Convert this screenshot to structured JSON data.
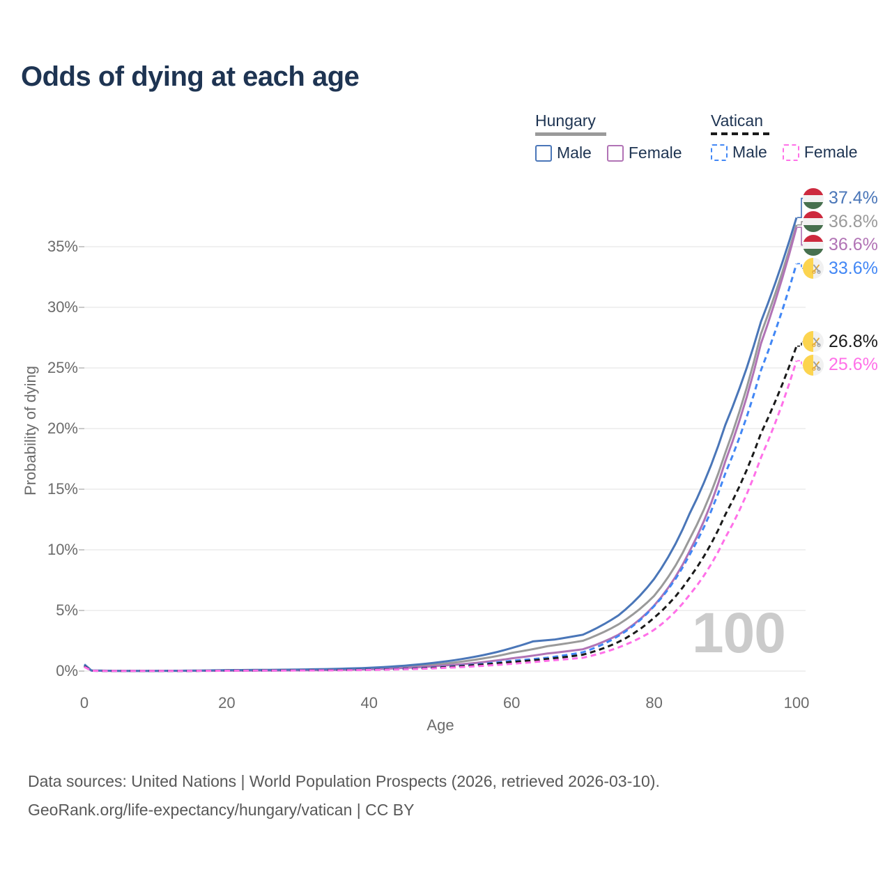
{
  "title": "Odds of dying at each age",
  "legend": {
    "groups": [
      {
        "id": "hungary",
        "label": "Hungary",
        "line_series": "hungary_total",
        "items": [
          {
            "label": "Male",
            "series": "hungary_male"
          },
          {
            "label": "Female",
            "series": "hungary_female"
          }
        ]
      },
      {
        "id": "vatican",
        "label": "Vatican",
        "line_series": "vatican_total",
        "items": [
          {
            "label": "Male",
            "series": "vatican_male"
          },
          {
            "label": "Female",
            "series": "vatican_female"
          }
        ]
      }
    ]
  },
  "axes": {
    "x_label": "Age",
    "y_label": "Probability of dying"
  },
  "hover_age_indicator": "100",
  "footer": {
    "line1": "Data sources: United Nations | World Population Prospects (2026, retrieved 2026-03-10).",
    "line2": "GeoRank.org/life-expectancy/hungary/vatican | CC BY"
  },
  "colors": {
    "title_text": "#1e3452",
    "tick_text": "#6b6b6b",
    "gridline": "#ebebeb",
    "watermark": "#cbcbcb",
    "footer_text": "#585858",
    "flag_hungary": [
      "#cd2a3e",
      "#f2f2f2",
      "#47704e"
    ],
    "flag_vatican": [
      "#fcd44f",
      "#f1f1f1",
      "#e2aa3b",
      "#9a9fa4"
    ]
  },
  "chart_data": {
    "type": "line",
    "title": "Odds of dying at each age",
    "xlabel": "Age",
    "ylabel": "Probability of dying",
    "xlim": [
      0,
      100
    ],
    "ylim": [
      0,
      39
    ],
    "x_ticks": [
      0,
      20,
      40,
      60,
      80,
      100
    ],
    "y_ticks": [
      0,
      5,
      10,
      15,
      20,
      25,
      30,
      35
    ],
    "y_tick_suffix": "%",
    "grid": "horizontal",
    "legend_position": "top-right",
    "watermark_age": "100",
    "units": "percent probability of dying at each age",
    "series": [
      {
        "id": "hungary_male",
        "name": "Hungary Male",
        "country": "Hungary",
        "sex": "Male",
        "color": "#4a76b8",
        "dash": "solid",
        "flag": "hungary",
        "end_label": "37.4%",
        "end_value": 37.4,
        "points": [
          [
            0,
            0.55
          ],
          [
            1,
            0.05
          ],
          [
            5,
            0.02
          ],
          [
            10,
            0.02
          ],
          [
            15,
            0.04
          ],
          [
            20,
            0.08
          ],
          [
            25,
            0.1
          ],
          [
            30,
            0.13
          ],
          [
            35,
            0.18
          ],
          [
            40,
            0.27
          ],
          [
            45,
            0.45
          ],
          [
            50,
            0.75
          ],
          [
            55,
            1.2
          ],
          [
            60,
            1.9
          ],
          [
            63,
            2.45
          ],
          [
            66,
            2.6
          ],
          [
            70,
            3.0
          ],
          [
            75,
            4.6
          ],
          [
            80,
            7.6
          ],
          [
            85,
            13.0
          ],
          [
            90,
            20.3
          ],
          [
            93,
            25.0
          ],
          [
            95,
            28.8
          ],
          [
            100,
            37.4
          ]
        ]
      },
      {
        "id": "hungary_total",
        "name": "Hungary",
        "country": "Hungary",
        "sex": "Both",
        "color": "#9a9a9a",
        "dash": "solid",
        "flag": "hungary",
        "end_label": "36.8%",
        "end_value": 36.8,
        "points": [
          [
            0,
            0.5
          ],
          [
            1,
            0.04
          ],
          [
            5,
            0.02
          ],
          [
            10,
            0.02
          ],
          [
            15,
            0.03
          ],
          [
            20,
            0.06
          ],
          [
            25,
            0.08
          ],
          [
            30,
            0.1
          ],
          [
            35,
            0.14
          ],
          [
            40,
            0.21
          ],
          [
            45,
            0.35
          ],
          [
            50,
            0.58
          ],
          [
            55,
            0.95
          ],
          [
            60,
            1.5
          ],
          [
            65,
            2.05
          ],
          [
            70,
            2.5
          ],
          [
            75,
            3.85
          ],
          [
            80,
            6.2
          ],
          [
            85,
            10.9
          ],
          [
            90,
            18.0
          ],
          [
            95,
            27.8
          ],
          [
            100,
            36.8
          ]
        ]
      },
      {
        "id": "hungary_female",
        "name": "Hungary Female",
        "country": "Hungary",
        "sex": "Female",
        "color": "#b173b5",
        "dash": "solid",
        "flag": "hungary",
        "end_label": "36.6%",
        "end_value": 36.6,
        "points": [
          [
            0,
            0.45
          ],
          [
            1,
            0.04
          ],
          [
            5,
            0.01
          ],
          [
            10,
            0.01
          ],
          [
            15,
            0.02
          ],
          [
            20,
            0.03
          ],
          [
            25,
            0.04
          ],
          [
            30,
            0.06
          ],
          [
            35,
            0.09
          ],
          [
            40,
            0.15
          ],
          [
            45,
            0.26
          ],
          [
            50,
            0.44
          ],
          [
            55,
            0.68
          ],
          [
            60,
            1.05
          ],
          [
            65,
            1.45
          ],
          [
            70,
            1.8
          ],
          [
            75,
            3.0
          ],
          [
            80,
            5.4
          ],
          [
            85,
            9.9
          ],
          [
            90,
            17.3
          ],
          [
            95,
            27.0
          ],
          [
            100,
            36.6
          ]
        ]
      },
      {
        "id": "vatican_male",
        "name": "Vatican Male",
        "country": "Vatican",
        "sex": "Male",
        "color": "#4287f5",
        "dash": "dashed",
        "flag": "vatican",
        "end_label": "33.6%",
        "end_value": 33.6,
        "points": [
          [
            0,
            0.45
          ],
          [
            1,
            0.03
          ],
          [
            5,
            0.01
          ],
          [
            10,
            0.01
          ],
          [
            15,
            0.02
          ],
          [
            20,
            0.04
          ],
          [
            25,
            0.05
          ],
          [
            30,
            0.06
          ],
          [
            35,
            0.08
          ],
          [
            40,
            0.12
          ],
          [
            45,
            0.2
          ],
          [
            50,
            0.33
          ],
          [
            55,
            0.55
          ],
          [
            60,
            0.85
          ],
          [
            65,
            1.1
          ],
          [
            70,
            1.55
          ],
          [
            75,
            2.9
          ],
          [
            80,
            5.35
          ],
          [
            85,
            9.6
          ],
          [
            90,
            16.3
          ],
          [
            95,
            24.8
          ],
          [
            100,
            33.6
          ]
        ]
      },
      {
        "id": "vatican_total",
        "name": "Vatican",
        "country": "Vatican",
        "sex": "Both",
        "color": "#1a1a1a",
        "dash": "dashed",
        "flag": "vatican",
        "end_label": "26.8%",
        "end_value": 26.8,
        "points": [
          [
            0,
            0.4
          ],
          [
            1,
            0.03
          ],
          [
            5,
            0.01
          ],
          [
            10,
            0.01
          ],
          [
            15,
            0.02
          ],
          [
            20,
            0.04
          ],
          [
            25,
            0.05
          ],
          [
            30,
            0.06
          ],
          [
            35,
            0.08
          ],
          [
            40,
            0.11
          ],
          [
            45,
            0.18
          ],
          [
            50,
            0.3
          ],
          [
            55,
            0.5
          ],
          [
            60,
            0.75
          ],
          [
            65,
            1.0
          ],
          [
            70,
            1.35
          ],
          [
            75,
            2.4
          ],
          [
            80,
            4.4
          ],
          [
            85,
            7.7
          ],
          [
            90,
            12.9
          ],
          [
            95,
            19.6
          ],
          [
            100,
            26.8
          ]
        ]
      },
      {
        "id": "vatican_female",
        "name": "Vatican Female",
        "country": "Vatican",
        "sex": "Female",
        "color": "#ff70e8",
        "dash": "dashed",
        "flag": "vatican",
        "end_label": "25.6%",
        "end_value": 25.6,
        "points": [
          [
            0,
            0.35
          ],
          [
            1,
            0.03
          ],
          [
            5,
            0.01
          ],
          [
            10,
            0.01
          ],
          [
            15,
            0.02
          ],
          [
            20,
            0.03
          ],
          [
            25,
            0.04
          ],
          [
            30,
            0.05
          ],
          [
            35,
            0.06
          ],
          [
            40,
            0.09
          ],
          [
            45,
            0.15
          ],
          [
            50,
            0.25
          ],
          [
            55,
            0.4
          ],
          [
            60,
            0.6
          ],
          [
            65,
            0.85
          ],
          [
            70,
            1.1
          ],
          [
            75,
            1.95
          ],
          [
            80,
            3.4
          ],
          [
            85,
            6.3
          ],
          [
            90,
            11.0
          ],
          [
            95,
            17.6
          ],
          [
            100,
            25.6
          ]
        ]
      }
    ]
  }
}
